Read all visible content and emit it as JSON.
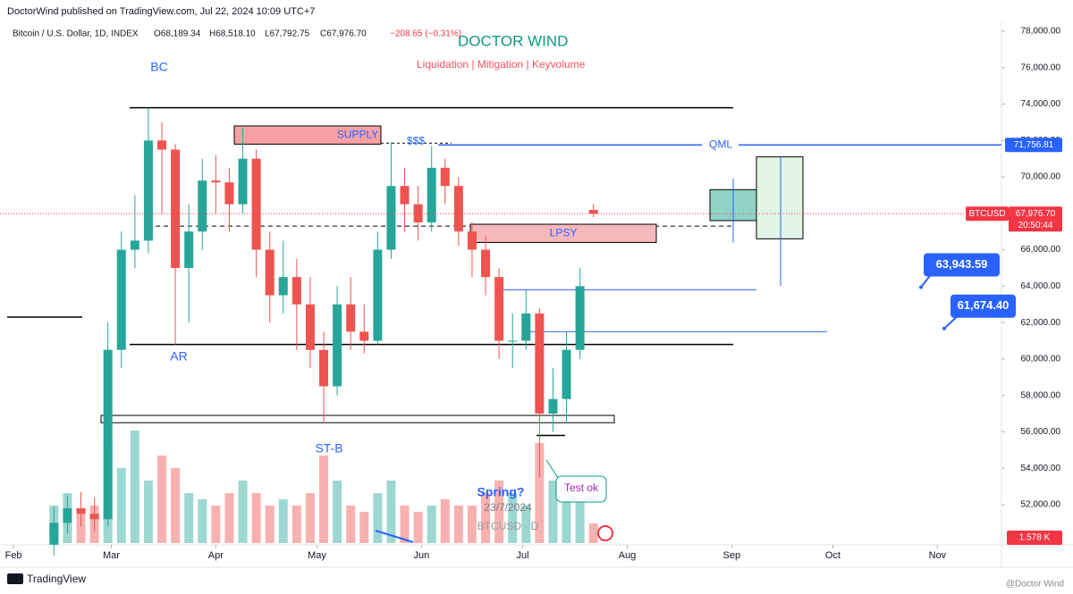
{
  "banner": "DoctorWind published on TradingView.com, Jul 22, 2024 10:09 UTC+7",
  "footer": {
    "brand": "TradingView",
    "author": "@Doctor Wind"
  },
  "chart_data": {
    "type": "candlestick",
    "symbol_title": "Bitcoin / U.S. Dollar, 1D, INDEX",
    "ohlc_header": {
      "open": "O68,189.34",
      "high": "H68,518.10",
      "low": "L67,792.75",
      "close": "C67,976.70",
      "change": "−208.65 (−0.31%)"
    },
    "title": "DOCTOR WIND",
    "subtitle": "Liquidation | Mitigation | Keyvolume",
    "x": [
      12,
      16,
      20,
      24,
      28,
      32,
      36,
      40,
      44,
      48,
      52,
      56,
      60,
      64,
      68,
      72,
      76,
      80,
      84,
      88,
      92,
      96,
      100,
      104,
      108,
      112,
      116,
      120,
      124,
      128,
      132,
      136,
      140,
      144,
      148,
      152,
      156,
      160,
      164,
      168,
      172
    ],
    "open": [
      49800,
      51000,
      51800,
      51500,
      51200,
      60500,
      66000,
      66500,
      72000,
      71500,
      65000,
      67000,
      69800,
      69700,
      68500,
      71000,
      66000,
      63500,
      64500,
      63000,
      60500,
      58500,
      63000,
      61500,
      61000,
      66000,
      69500,
      68500,
      67500,
      70500,
      69500,
      67000,
      66000,
      64500,
      61000,
      61000,
      62500,
      57000,
      57800,
      60500,
      68189.34
    ],
    "high": [
      51900,
      52500,
      52700,
      52400,
      62000,
      67000,
      69000,
      73800,
      73000,
      71800,
      68500,
      71000,
      71200,
      70500,
      72700,
      71500,
      67000,
      66500,
      65500,
      64500,
      61500,
      64000,
      64500,
      63000,
      67000,
      71900,
      70500,
      69500,
      71700,
      71000,
      70000,
      67500,
      66800,
      65000,
      62500,
      63800,
      62800,
      59500,
      61500,
      65000,
      68518.1
    ],
    "low": [
      49200,
      50400,
      50800,
      50500,
      50800,
      59500,
      65000,
      65800,
      68000,
      60800,
      62000,
      66000,
      68000,
      67000,
      68000,
      64500,
      62000,
      62500,
      60500,
      59500,
      56500,
      58000,
      60500,
      60300,
      60800,
      65500,
      67000,
      66500,
      67000,
      68500,
      66200,
      64500,
      63500,
      60000,
      59500,
      60500,
      53500,
      56000,
      56500,
      60000,
      67792.75
    ],
    "close": [
      51000,
      51800,
      51500,
      51200,
      60500,
      66000,
      66500,
      72000,
      71500,
      65000,
      67000,
      69800,
      69700,
      68500,
      71000,
      66000,
      63500,
      64500,
      63000,
      60500,
      58500,
      63000,
      61500,
      61000,
      66000,
      69500,
      68500,
      67500,
      70500,
      69500,
      67000,
      66000,
      64500,
      61000,
      61000,
      62500,
      57000,
      57800,
      60500,
      64000,
      67976.7
    ],
    "volume": [
      3,
      4,
      2.5,
      3,
      8,
      6,
      9,
      5,
      7,
      6,
      4,
      3.5,
      3,
      4,
      5,
      4,
      3,
      3.5,
      3,
      4,
      7,
      5,
      3,
      2.5,
      4,
      5,
      3,
      2.5,
      3,
      3.5,
      3,
      3,
      4,
      5,
      4,
      3,
      8,
      5,
      4,
      3.5,
      1.578
    ],
    "volume_label": "1.578 K",
    "up_color": "#26a69a",
    "down_color": "#ef5350",
    "xlim": [
      -4,
      293
    ],
    "xticks": [
      {
        "value": 0,
        "label": "Feb"
      },
      {
        "value": 29,
        "label": "Mar"
      },
      {
        "value": 60,
        "label": "Apr"
      },
      {
        "value": 90,
        "label": "May"
      },
      {
        "value": 121,
        "label": "Jun"
      },
      {
        "value": 151,
        "label": "Jul"
      },
      {
        "value": 182,
        "label": "Aug"
      },
      {
        "value": 213,
        "label": "Sep"
      },
      {
        "value": 243,
        "label": "Oct"
      },
      {
        "value": 274,
        "label": "Nov"
      }
    ],
    "ylim": [
      49790,
      78490
    ],
    "yticks": [
      {
        "value": 52000,
        "label": "52,000.00"
      },
      {
        "value": 54000,
        "label": "54,000.00"
      },
      {
        "value": 56000,
        "label": "56,000.00"
      },
      {
        "value": 58000,
        "label": "58,000.00"
      },
      {
        "value": 60000,
        "label": "60,000.00"
      },
      {
        "value": 62000,
        "label": "62,000.00"
      },
      {
        "value": 64000,
        "label": "64,000.00"
      },
      {
        "value": 66000,
        "label": "66,000.00"
      },
      {
        "value": 68000,
        "label": "68,000.00"
      },
      {
        "value": 70000,
        "label": "70,000.00"
      },
      {
        "value": 72000,
        "label": "72,000.00"
      },
      {
        "value": 74000,
        "label": "74,000.00"
      },
      {
        "value": 76000,
        "label": "76,000.00"
      },
      {
        "value": 78000,
        "label": "78,000.00"
      }
    ],
    "last_price": {
      "value": 67976.7,
      "label": "67,976.70",
      "symbol": "BTCUSD",
      "countdown": "20:50:44"
    },
    "qml": {
      "value": 71756.81,
      "label": "71,756.81",
      "name": "QML"
    },
    "callouts": [
      {
        "value": 63943.59,
        "label": "63,943.59"
      },
      {
        "value": 61674.4,
        "label": "61,674.40"
      }
    ],
    "lines": [
      {
        "price": 73800
      },
      {
        "price": 60800
      },
      {
        "price": 62300
      },
      {
        "price": 67300
      },
      {
        "price": 63800
      },
      {
        "price": 61500
      },
      {
        "price": 55800
      }
    ],
    "boxes": [
      {
        "top": 56900,
        "bottom": 56500
      },
      {
        "top": 72800,
        "bottom": 71800,
        "label": "SUPPLY"
      },
      {
        "top": 67400,
        "bottom": 66400,
        "label": "LPSY"
      },
      {
        "top": 69300,
        "bottom": 67600
      },
      {
        "top": 71100,
        "bottom": 66600
      }
    ],
    "vlines": [
      {
        "top": 69900,
        "bottom": 66400
      },
      {
        "top": 71100,
        "bottom": 64000
      }
    ],
    "annotations": {
      "bc": "BC",
      "ar": "AR",
      "stb": "ST-B",
      "liq": "$$$",
      "spring": "Spring?",
      "date": "23/7/2024",
      "watermark": "BTCUSD · D",
      "test": "Test ok"
    }
  }
}
